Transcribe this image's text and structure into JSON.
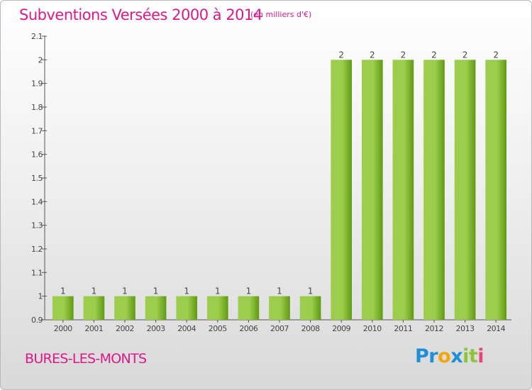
{
  "header": {
    "title": "Subventions Versées 2000 à 2014",
    "unit": "(en milliers d'€)"
  },
  "footer": {
    "commune": "BURES-LES-MONTS",
    "logo_letters": [
      {
        "ch": "P",
        "color": "#1e90d8"
      },
      {
        "ch": "r",
        "color": "#1e90d8"
      },
      {
        "ch": "o",
        "color": "#f2a50c"
      },
      {
        "ch": "x",
        "color": "#1e90d8"
      },
      {
        "ch": "i",
        "color": "#8cc43c"
      },
      {
        "ch": "t",
        "color": "#8cc43c"
      },
      {
        "ch": "i",
        "color": "#e8447a"
      }
    ]
  },
  "colors": {
    "title": "#d81a8a",
    "bar_light": "#9ccd4c",
    "bar_dark": "#5f9a12"
  },
  "chart_data": {
    "type": "bar",
    "title": "Subventions Versées 2000 à 2014",
    "xlabel": "",
    "ylabel": "",
    "categories": [
      "2000",
      "2001",
      "2002",
      "2003",
      "2004",
      "2005",
      "2006",
      "2007",
      "2008",
      "2009",
      "2010",
      "2011",
      "2012",
      "2013",
      "2014"
    ],
    "values": [
      1,
      1,
      1,
      1,
      1,
      1,
      1,
      1,
      1,
      2,
      2,
      2,
      2,
      2,
      2
    ],
    "ylim": [
      0.9,
      2.1
    ],
    "yticks": [
      0.9,
      1,
      1.1,
      1.2,
      1.3,
      1.4,
      1.5,
      1.6,
      1.7,
      1.8,
      1.9,
      2,
      2.1
    ],
    "ytick_labels": [
      "0.9",
      "1",
      "1.1",
      "1.2",
      "1.3",
      "1.4",
      "1.5",
      "1.6",
      "1.7",
      "1.8",
      "1.9",
      "2",
      "2.1"
    ],
    "data_labels": [
      "1",
      "1",
      "1",
      "1",
      "1",
      "1",
      "1",
      "1",
      "1",
      "2",
      "2",
      "2",
      "2",
      "2",
      "2"
    ],
    "grid": false,
    "legend": "none"
  }
}
